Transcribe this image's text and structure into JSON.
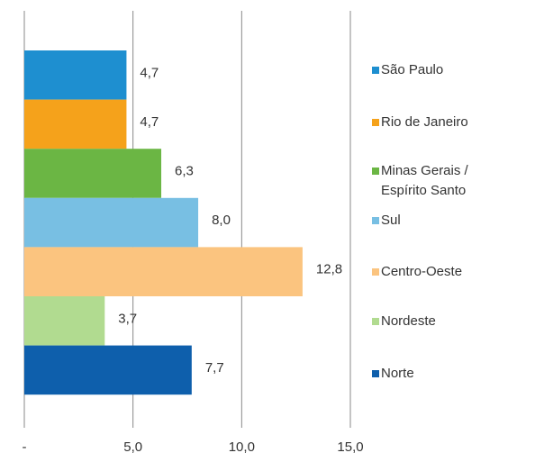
{
  "chart_data": {
    "type": "bar",
    "orientation": "horizontal",
    "series": [
      {
        "name": "São Paulo",
        "color": "#1e8fd0",
        "values": [
          4.7
        ],
        "value_labels": [
          "4,7"
        ]
      },
      {
        "name": "Rio de Janeiro",
        "color": "#f5a21b",
        "values": [
          4.7
        ],
        "value_labels": [
          "4,7"
        ]
      },
      {
        "name": "Minas Gerais / Espírito Santo",
        "color": "#6bb644",
        "values": [
          6.3
        ],
        "value_labels": [
          "6,3"
        ]
      },
      {
        "name": "Sul",
        "color": "#78bfe3",
        "values": [
          8.0
        ],
        "value_labels": [
          "8,0"
        ]
      },
      {
        "name": "Centro-Oeste",
        "color": "#fbc47f",
        "values": [
          12.8
        ],
        "value_labels": [
          "12,8"
        ]
      },
      {
        "name": "Nordeste",
        "color": "#b1db90",
        "values": [
          3.7
        ],
        "value_labels": [
          "3,7"
        ]
      },
      {
        "name": "Norte",
        "color": "#0e5fac",
        "values": [
          7.7
        ],
        "value_labels": [
          "7,7"
        ]
      }
    ],
    "xlim": [
      0,
      15
    ],
    "xticks": [
      {
        "value": 0,
        "label": "-"
      },
      {
        "value": 5,
        "label": "5,0"
      },
      {
        "value": 10,
        "label": "10,0"
      },
      {
        "value": 15,
        "label": "15,0"
      }
    ],
    "grid": true,
    "legend": "right"
  }
}
